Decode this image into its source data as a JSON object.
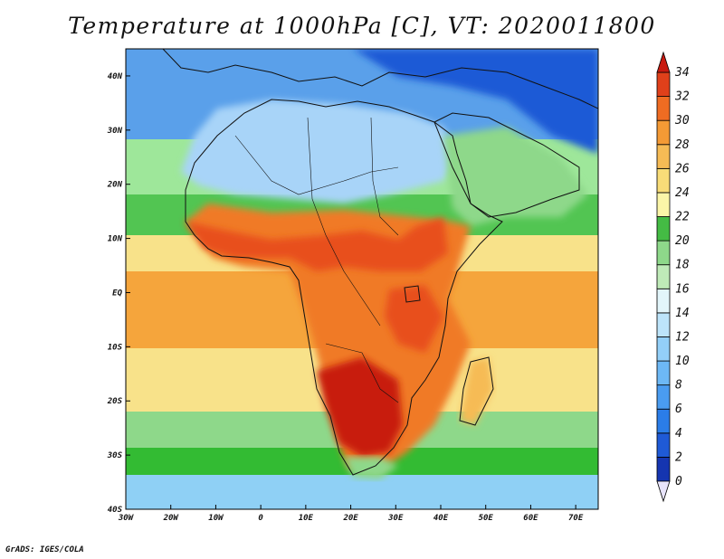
{
  "title": "Temperature at 1000hPa [C], VT: 2020011800",
  "footer": "GrADS: IGES/COLA",
  "map": {
    "lon_range": [
      -30,
      75
    ],
    "lat_range": [
      -40,
      45
    ],
    "x_tick_labels": [
      "30W",
      "20W",
      "10W",
      "0",
      "10E",
      "20E",
      "30E",
      "40E",
      "50E",
      "60E",
      "70E"
    ],
    "y_tick_labels": [
      "40N",
      "30N",
      "20N",
      "10N",
      "EQ",
      "10S",
      "20S",
      "30S",
      "40S"
    ],
    "colors": {
      "sea_far_south": "#8fd0f5",
      "sea_south": "#33bb33",
      "sea_subtropic": "#f8e28a",
      "sea_tropic": "#f5a53c",
      "sahara": "#a8d4f8",
      "med": "#5aa0ea",
      "hot_land": "#e8501e",
      "hottest": "#c81e0a",
      "mid_land": "#f07a28",
      "desert_edge": "#9ee79a",
      "sahel": "#52c552",
      "coast": "#111111"
    }
  },
  "colorbar": {
    "labels": [
      "0",
      "2",
      "4",
      "6",
      "8",
      "10",
      "12",
      "14",
      "16",
      "18",
      "20",
      "22",
      "24",
      "26",
      "28",
      "30",
      "32",
      "34"
    ],
    "colors": [
      "#0a1a80",
      "#1535b0",
      "#1f5ad6",
      "#2b7de8",
      "#4a9cf0",
      "#6db8f5",
      "#93cff8",
      "#bde4fa",
      "#e2f5fa",
      "#bfeab8",
      "#8ed88a",
      "#44bb44",
      "#fbf5a8",
      "#f8dc78",
      "#f6bb55",
      "#f49a35",
      "#ef6c22",
      "#e0401a",
      "#c81a10"
    ],
    "under_color": "#e8e4fb",
    "over_color": "#c81a10"
  }
}
